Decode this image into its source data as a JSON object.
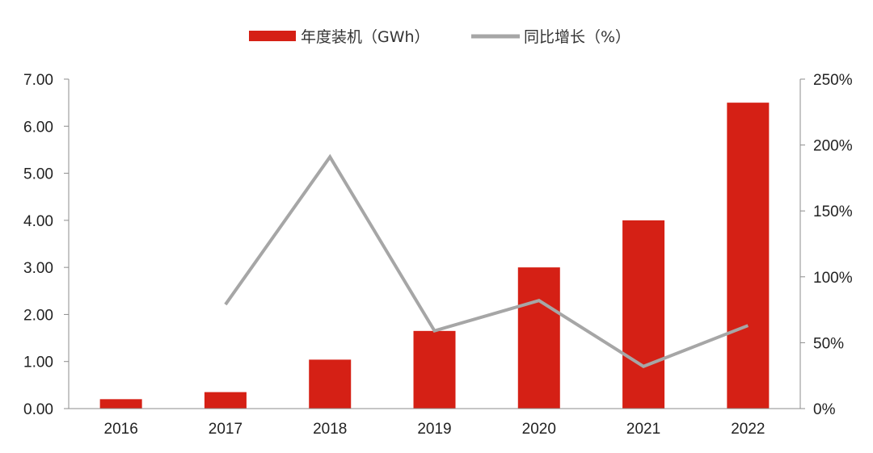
{
  "chart_data": {
    "type": "bar",
    "categories": [
      "2016",
      "2017",
      "2018",
      "2019",
      "2020",
      "2021",
      "2022"
    ],
    "series": [
      {
        "name": "年度装机（GWh）",
        "type": "bar",
        "axis": "left",
        "color": "#d52015",
        "values": [
          0.2,
          0.35,
          1.04,
          1.65,
          3.0,
          4.0,
          6.5
        ]
      },
      {
        "name": "同比增长（%）",
        "type": "line",
        "axis": "right",
        "color": "#a6a6a6",
        "values": [
          null,
          79,
          191,
          59,
          82,
          32,
          63
        ]
      }
    ],
    "y_left": {
      "ylim": [
        0,
        7
      ],
      "ticks": [
        0,
        1,
        2,
        3,
        4,
        5,
        6,
        7
      ],
      "tick_labels": [
        "0.00",
        "1.00",
        "2.00",
        "3.00",
        "4.00",
        "5.00",
        "6.00",
        "7.00"
      ]
    },
    "y_right": {
      "ylim": [
        0,
        250
      ],
      "ticks": [
        0,
        50,
        100,
        150,
        200,
        250
      ],
      "tick_labels": [
        "0%",
        "50%",
        "100%",
        "150%",
        "200%",
        "250%"
      ]
    },
    "legend_position": "top-center",
    "grid": false
  }
}
